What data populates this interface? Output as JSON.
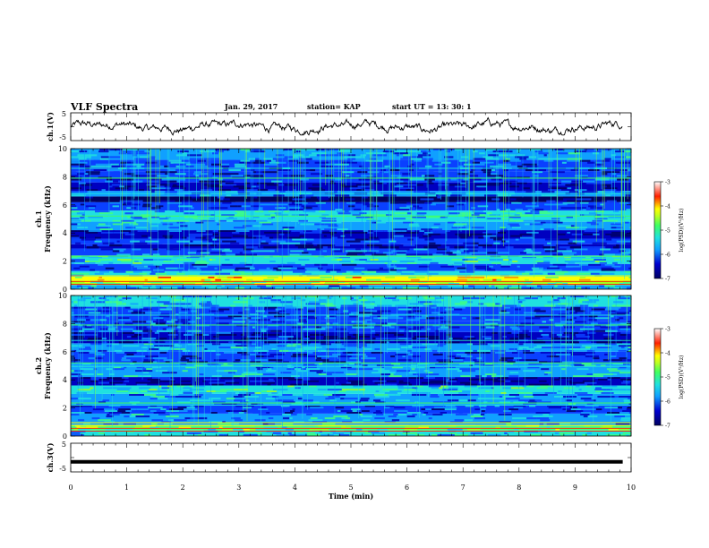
{
  "header": {
    "title": "VLF Spectra",
    "date": "Jan. 29, 2017",
    "station": "station= KAP",
    "start_time": "start  UT =   13: 30: 1"
  },
  "chart_data": [
    {
      "type": "line",
      "panel": "ch1-waveform",
      "ylabel": "ch.1(V)",
      "ylim": [
        -5,
        5
      ],
      "yticks": [
        "5",
        "-5"
      ],
      "xlim": [
        0,
        10
      ],
      "x_end": 9.85,
      "note": "noisy waveform oscillating roughly between -2 and +2 V"
    },
    {
      "type": "heatmap",
      "panel": "ch1-spectrogram",
      "ylabel": "ch.1\nFrequency (kHz)",
      "ylim": [
        0,
        10
      ],
      "yticks": [
        "0",
        "2",
        "4",
        "6",
        "8",
        "10"
      ],
      "xlim": [
        0,
        10
      ],
      "bands": [
        {
          "from": 0.0,
          "to": 0.3,
          "level": -5.5
        },
        {
          "from": 0.3,
          "to": 0.6,
          "level": -4.6
        },
        {
          "from": 0.6,
          "to": 0.9,
          "level": -4.0
        },
        {
          "from": 0.9,
          "to": 1.3,
          "level": -5.4
        },
        {
          "from": 1.3,
          "to": 1.8,
          "level": -6.0
        },
        {
          "from": 1.8,
          "to": 2.4,
          "level": -5.2
        },
        {
          "from": 2.4,
          "to": 2.9,
          "level": -5.9
        },
        {
          "from": 2.9,
          "to": 3.2,
          "level": -6.6
        },
        {
          "from": 3.2,
          "to": 3.6,
          "level": -6.0
        },
        {
          "from": 3.6,
          "to": 4.2,
          "level": -6.4
        },
        {
          "from": 4.2,
          "to": 4.8,
          "level": -5.6
        },
        {
          "from": 4.8,
          "to": 5.6,
          "level": -5.4
        },
        {
          "from": 5.6,
          "to": 6.2,
          "level": -6.0
        },
        {
          "from": 6.2,
          "to": 6.6,
          "level": -6.8
        },
        {
          "from": 6.6,
          "to": 7.0,
          "level": -5.8
        },
        {
          "from": 7.0,
          "to": 7.6,
          "level": -6.5
        },
        {
          "from": 7.6,
          "to": 8.4,
          "level": -6.1
        },
        {
          "from": 8.4,
          "to": 9.2,
          "level": -6.0
        },
        {
          "from": 9.2,
          "to": 10.0,
          "level": -5.7
        }
      ],
      "colorbar": {
        "label": "log(PSD)(V²/Hz)",
        "range": [
          -7,
          -3
        ],
        "ticks": [
          "-3",
          "-4",
          "-5",
          "-6",
          "-7"
        ]
      }
    },
    {
      "type": "heatmap",
      "panel": "ch2-spectrogram",
      "ylabel": "ch.2\nFrequency (kHz)",
      "ylim": [
        0,
        10
      ],
      "yticks": [
        "0",
        "2",
        "4",
        "6",
        "8",
        "10"
      ],
      "xlim": [
        0,
        10
      ],
      "bands": [
        {
          "from": 0.0,
          "to": 0.4,
          "level": -5.4
        },
        {
          "from": 0.4,
          "to": 0.8,
          "level": -4.7
        },
        {
          "from": 0.8,
          "to": 1.6,
          "level": -5.6
        },
        {
          "from": 1.6,
          "to": 2.2,
          "level": -6.0
        },
        {
          "from": 2.2,
          "to": 3.0,
          "level": -5.7
        },
        {
          "from": 3.0,
          "to": 3.6,
          "level": -5.2
        },
        {
          "from": 3.6,
          "to": 4.2,
          "level": -6.6
        },
        {
          "from": 4.2,
          "to": 5.2,
          "level": -5.5
        },
        {
          "from": 5.2,
          "to": 6.0,
          "level": -6.2
        },
        {
          "from": 6.0,
          "to": 6.6,
          "level": -5.6
        },
        {
          "from": 6.6,
          "to": 7.4,
          "level": -6.5
        },
        {
          "from": 7.4,
          "to": 8.2,
          "level": -5.9
        },
        {
          "from": 8.2,
          "to": 9.2,
          "level": -6.0
        },
        {
          "from": 9.2,
          "to": 10.0,
          "level": -5.4
        }
      ],
      "colorbar": {
        "label": "log(PSD)(V²/Hz)",
        "range": [
          -7,
          -3
        ],
        "ticks": [
          "-3",
          "-4",
          "-5",
          "-6",
          "-7"
        ]
      }
    },
    {
      "type": "line",
      "panel": "ch3-waveform",
      "ylabel": "ch.3(V)",
      "ylim": [
        -5,
        5
      ],
      "yticks": [
        "5",
        "-5"
      ],
      "xlim": [
        0,
        10
      ],
      "x_end": 9.85,
      "constant_value": -1.5
    }
  ],
  "x_axis": {
    "label": "Time  (min)",
    "ticks": [
      "0",
      "1",
      "2",
      "3",
      "4",
      "5",
      "6",
      "7",
      "8",
      "9",
      "10"
    ]
  },
  "colormap": [
    "#000060",
    "#0000c0",
    "#0a40ff",
    "#10a0ff",
    "#20e0e0",
    "#40ff80",
    "#a0ff20",
    "#ffff00",
    "#ff8000",
    "#ff0000",
    "#ffffff"
  ]
}
